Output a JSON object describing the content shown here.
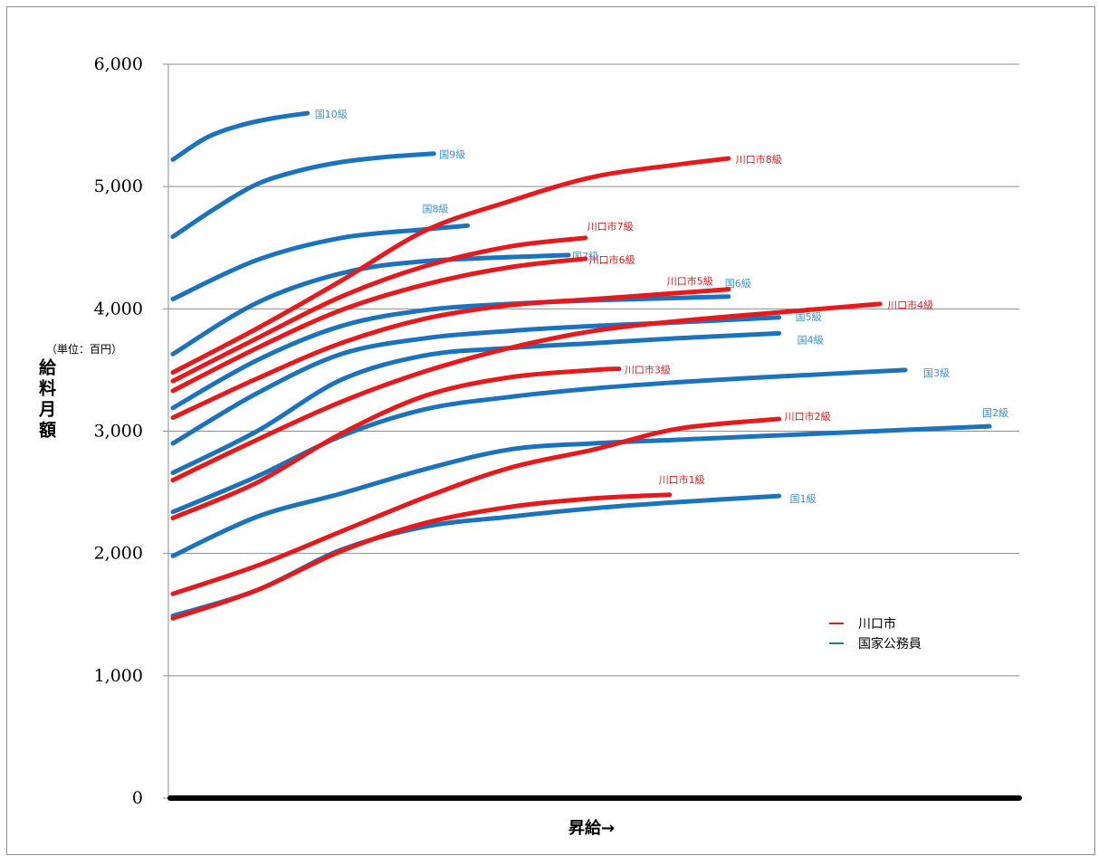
{
  "chart_data": {
    "type": "line",
    "xlabel": "昇給→",
    "ylabel": "給料月額",
    "unit_note": "（単位：百円）",
    "ylim": [
      0,
      6000
    ],
    "yticks": [
      "0",
      "1,000",
      "2,000",
      "3,000",
      "4,000",
      "5,000",
      "6,000"
    ],
    "grid": true,
    "legend_position": "bottom-right",
    "legend": [
      {
        "name": "川口市",
        "color": "#e8191b"
      },
      {
        "name": "国家公務員",
        "color": "#1a73bf"
      }
    ],
    "colors": {
      "kawaguchi": "#e8191b",
      "national": "#1a73bf",
      "label_blue": "#3e8fd4"
    },
    "series": [
      {
        "name": "国1級",
        "group": "national",
        "x": [
          0,
          10,
          20,
          30,
          40,
          50,
          60,
          72
        ],
        "y": [
          1490,
          1700,
          2030,
          2220,
          2300,
          2370,
          2420,
          2470
        ]
      },
      {
        "name": "国2級",
        "group": "national",
        "x": [
          0,
          10,
          20,
          30,
          40,
          50,
          60,
          70,
          80,
          97
        ],
        "y": [
          1980,
          2300,
          2490,
          2690,
          2850,
          2900,
          2930,
          2960,
          2990,
          3040
        ]
      },
      {
        "name": "国3級",
        "group": "national",
        "x": [
          0,
          10,
          20,
          30,
          40,
          50,
          60,
          70,
          87
        ],
        "y": [
          2340,
          2630,
          2960,
          3180,
          3280,
          3350,
          3400,
          3440,
          3500
        ]
      },
      {
        "name": "国4級",
        "group": "national",
        "x": [
          0,
          10,
          20,
          30,
          40,
          50,
          60,
          72
        ],
        "y": [
          2660,
          3000,
          3420,
          3620,
          3680,
          3720,
          3760,
          3800
        ]
      },
      {
        "name": "国5級",
        "group": "national",
        "x": [
          0,
          10,
          20,
          30,
          40,
          50,
          60,
          72
        ],
        "y": [
          2900,
          3310,
          3630,
          3760,
          3820,
          3860,
          3890,
          3930
        ]
      },
      {
        "name": "国6級",
        "group": "national",
        "x": [
          0,
          10,
          20,
          30,
          40,
          50,
          66
        ],
        "y": [
          3190,
          3580,
          3860,
          3990,
          4040,
          4070,
          4100
        ]
      },
      {
        "name": "国7級",
        "group": "national",
        "x": [
          0,
          10,
          20,
          30,
          47
        ],
        "y": [
          3630,
          4050,
          4290,
          4390,
          4440
        ]
      },
      {
        "name": "国8級",
        "group": "national",
        "x": [
          0,
          10,
          20,
          30,
          35
        ],
        "y": [
          4080,
          4400,
          4580,
          4650,
          4680
        ]
      },
      {
        "name": "国9級",
        "group": "national",
        "x": [
          0,
          5,
          10,
          15,
          20,
          25,
          31
        ],
        "y": [
          4590,
          4820,
          5020,
          5130,
          5200,
          5240,
          5270
        ]
      },
      {
        "name": "国10級",
        "group": "national",
        "x": [
          0,
          4,
          8,
          12,
          16
        ],
        "y": [
          5220,
          5400,
          5500,
          5560,
          5600
        ]
      },
      {
        "name": "川口市1級",
        "group": "kawaguchi",
        "x": [
          0,
          10,
          20,
          30,
          40,
          50,
          59
        ],
        "y": [
          1470,
          1700,
          2020,
          2250,
          2380,
          2450,
          2480
        ]
      },
      {
        "name": "川口市2級",
        "group": "kawaguchi",
        "x": [
          0,
          10,
          20,
          30,
          40,
          50,
          60,
          72
        ],
        "y": [
          1670,
          1900,
          2180,
          2460,
          2700,
          2850,
          3020,
          3100
        ]
      },
      {
        "name": "川口市3級",
        "group": "kawaguchi",
        "x": [
          0,
          10,
          20,
          30,
          40,
          50,
          53
        ],
        "y": [
          2290,
          2580,
          2980,
          3290,
          3440,
          3500,
          3510
        ]
      },
      {
        "name": "川口市4級",
        "group": "kawaguchi",
        "x": [
          0,
          10,
          20,
          30,
          40,
          50,
          60,
          70,
          84
        ],
        "y": [
          2600,
          2930,
          3240,
          3490,
          3680,
          3820,
          3900,
          3960,
          4040
        ]
      },
      {
        "name": "川口市5級",
        "group": "kawaguchi",
        "x": [
          0,
          10,
          20,
          30,
          40,
          50,
          60,
          66
        ],
        "y": [
          3110,
          3430,
          3720,
          3920,
          4030,
          4080,
          4130,
          4160
        ]
      },
      {
        "name": "川口市6級",
        "group": "kawaguchi",
        "x": [
          0,
          10,
          20,
          30,
          40,
          49
        ],
        "y": [
          3330,
          3680,
          3990,
          4200,
          4340,
          4410
        ]
      },
      {
        "name": "川口市7級",
        "group": "kawaguchi",
        "x": [
          0,
          10,
          20,
          30,
          40,
          49
        ],
        "y": [
          3410,
          3760,
          4100,
          4350,
          4510,
          4580
        ]
      },
      {
        "name": "川口市8級",
        "group": "kawaguchi",
        "x": [
          0,
          10,
          20,
          30,
          40,
          50,
          60,
          66
        ],
        "y": [
          3480,
          3840,
          4230,
          4640,
          4880,
          5080,
          5180,
          5230
        ]
      }
    ]
  }
}
